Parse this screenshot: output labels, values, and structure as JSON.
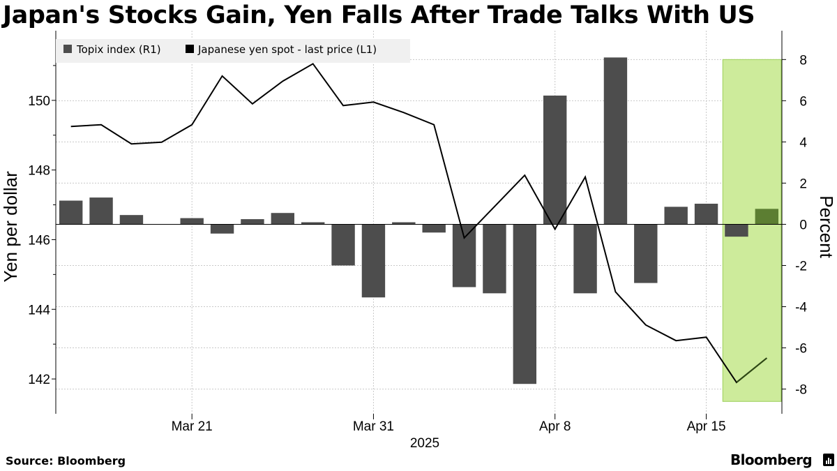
{
  "title": "Japan's Stocks Gain, Yen Falls After Trade Talks With US",
  "source": "Source: Bloomberg",
  "brand": "Bloomberg",
  "colors": {
    "bar": "#4d4d4d",
    "line": "#000000",
    "highlight_fill": "#cdeb9b",
    "highlight_stroke": "#9ccf58",
    "highlight_bar": "#5c7e32",
    "grid": "#c8c8c8",
    "legend_bg": "#f0f0f0"
  },
  "chart_data": {
    "type": "bar+line",
    "title": "Japan's Stocks Gain, Yen Falls After Trade Talks With US",
    "legend": [
      {
        "name": "Topix index (R1)",
        "color": "#4d4d4d"
      },
      {
        "name": "Japanese yen spot - last price (L1)",
        "color": "#000000"
      }
    ],
    "legend_position": "top-left",
    "x_ticks": [
      "Mar 21",
      "Mar 31",
      "Apr 8",
      "Apr 15"
    ],
    "x_title": "2025",
    "left_axis": {
      "label": "Yen per dollar",
      "ticks": [
        "142",
        "144",
        "146",
        "148",
        "150"
      ],
      "range": [
        141.0,
        152.0
      ]
    },
    "right_axis": {
      "label": "Percent",
      "ticks": [
        "-8",
        "-6",
        "-4",
        "-2",
        "0",
        "2",
        "4",
        "6",
        "8"
      ],
      "range": [
        -9.2,
        9.4
      ]
    },
    "grid": true,
    "dates": [
      "Mar 17",
      "Mar 18",
      "Mar 19",
      "Mar 20",
      "Mar 21",
      "Mar 24",
      "Mar 25",
      "Mar 26",
      "Mar 27",
      "Mar 28",
      "Mar 31",
      "Apr 1",
      "Apr 2",
      "Apr 3",
      "Apr 4",
      "Apr 7",
      "Apr 8",
      "Apr 9",
      "Apr 10",
      "Apr 11",
      "Apr 14",
      "Apr 15",
      "Apr 16",
      "Apr 17"
    ],
    "series": [
      {
        "name": "Topix index (R1)",
        "axis": "right",
        "kind": "bar",
        "values": [
          1.15,
          1.3,
          0.45,
          0.0,
          0.3,
          -0.45,
          0.25,
          0.55,
          0.1,
          -2.0,
          -3.55,
          0.1,
          -0.4,
          -3.05,
          -3.35,
          -7.75,
          6.25,
          -3.35,
          8.1,
          -2.85,
          0.85,
          1.0,
          -0.6,
          0.75
        ]
      },
      {
        "name": "Japanese yen spot - last price (L1)",
        "axis": "left",
        "kind": "line",
        "values": [
          149.25,
          149.3,
          148.75,
          148.8,
          149.3,
          150.7,
          149.9,
          150.55,
          151.05,
          149.85,
          149.95,
          149.65,
          149.3,
          146.05,
          146.95,
          147.85,
          146.3,
          147.8,
          144.5,
          143.55,
          143.1,
          143.2,
          141.9,
          142.6
        ]
      }
    ],
    "highlight": {
      "from": "Apr 16",
      "to": "Apr 17"
    }
  }
}
